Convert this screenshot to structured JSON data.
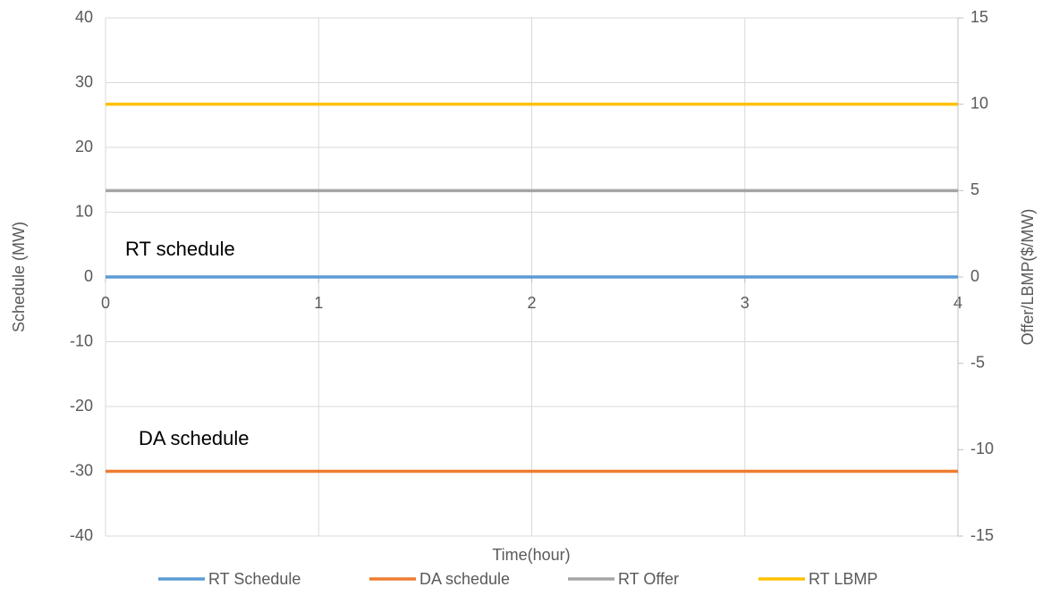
{
  "chart_data": {
    "type": "line",
    "x_label": "Time(hour)",
    "y_label": "Schedule (MW)",
    "y2_label": "Offer/LBMP($/MW)",
    "x": [
      0,
      1,
      2,
      3,
      4
    ],
    "series": [
      {
        "name": "RT Schedule",
        "color": "#5b9bd5",
        "values": [
          0,
          0,
          0,
          0,
          0
        ]
      },
      {
        "name": "DA schedule",
        "color": "#ed7d31",
        "values": [
          -30,
          -30,
          -30,
          -30,
          -30
        ]
      },
      {
        "name": "RT Offer",
        "color": "#a5a5a5",
        "axis": "y2",
        "values": [
          5,
          5,
          5,
          5,
          5
        ]
      },
      {
        "name": "RT LBMP",
        "color": "#ffc000",
        "axis": "y2",
        "values": [
          10,
          10,
          10,
          10,
          10
        ]
      }
    ],
    "annotations": [
      "RT schedule",
      "DA schedule"
    ],
    "xlim": [
      0,
      4
    ],
    "xticks": [
      0,
      1,
      2,
      3,
      4
    ],
    "ylim": [
      -40,
      40
    ],
    "yticks": [
      -40,
      -30,
      -20,
      -10,
      0,
      10,
      20,
      30,
      40
    ],
    "y2lim": [
      -15,
      15
    ],
    "y2ticks": [
      -15,
      -10,
      -5,
      0,
      5,
      10,
      15
    ],
    "grid": true,
    "legend": "bottom"
  }
}
